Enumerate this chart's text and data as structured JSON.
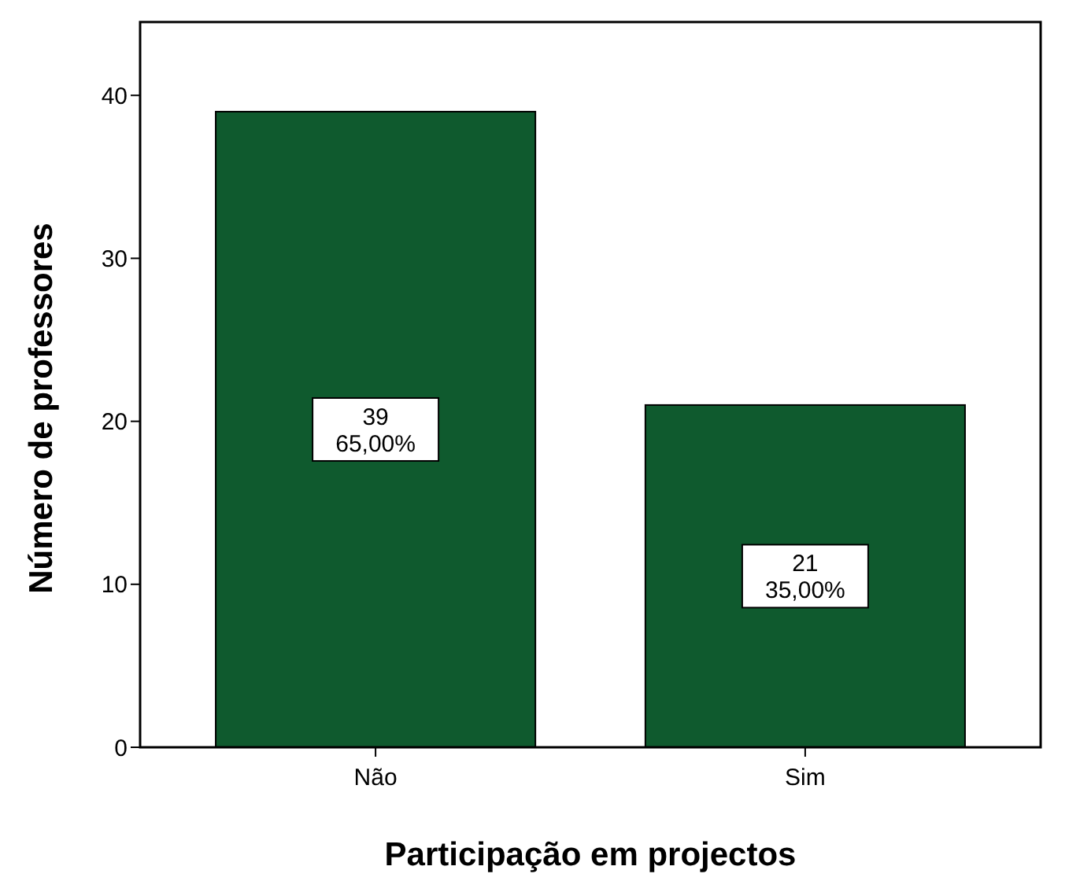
{
  "chart_data": {
    "type": "bar",
    "xlabel": "Participação em projectos",
    "ylabel": "Número de professores",
    "categories": [
      "Não",
      "Sim"
    ],
    "values": [
      39,
      21
    ],
    "color": "#0f5a2e",
    "value_labels": [
      "39\n65,00%",
      "21\n35,00%"
    ],
    "ylim": [
      0,
      44.5
    ],
    "yticks": [
      0,
      10,
      20,
      30,
      40
    ],
    "grid": false
  }
}
